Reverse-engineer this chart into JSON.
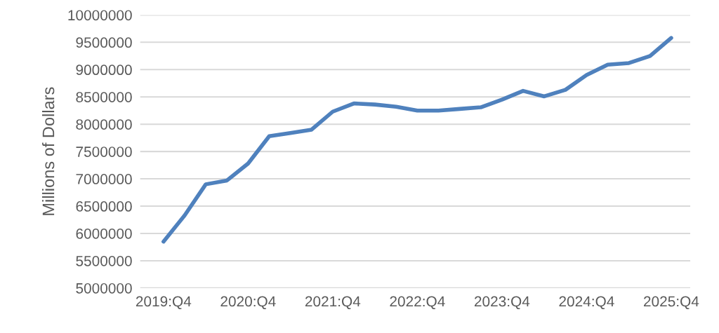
{
  "chart_data": {
    "type": "line",
    "ylabel": "Millions of Dollars",
    "categories": [
      "2019:Q4",
      null,
      null,
      null,
      "2020:Q4",
      null,
      null,
      null,
      "2021:Q4",
      null,
      null,
      null,
      "2022:Q4",
      null,
      null,
      null,
      "2023:Q4",
      null,
      null,
      null,
      "2024:Q4",
      null,
      null,
      null,
      "2025:Q4"
    ],
    "series": [
      {
        "color": "#4f81bd",
        "values": [
          5850000,
          6330000,
          6900000,
          6970000,
          7280000,
          7780000,
          7840000,
          7900000,
          8230000,
          8380000,
          8360000,
          8320000,
          8250000,
          8250000,
          8280000,
          8310000,
          8450000,
          8610000,
          8510000,
          8630000,
          8900000,
          9090000,
          9120000,
          9250000,
          9580000
        ]
      }
    ],
    "ylim": [
      5000000,
      10000000
    ],
    "yticks": [
      5000000,
      5500000,
      6000000,
      6500000,
      7000000,
      7500000,
      8000000,
      8500000,
      9000000,
      9500000,
      10000000
    ],
    "grid": "y",
    "marker": "none",
    "line_style": "solid"
  }
}
